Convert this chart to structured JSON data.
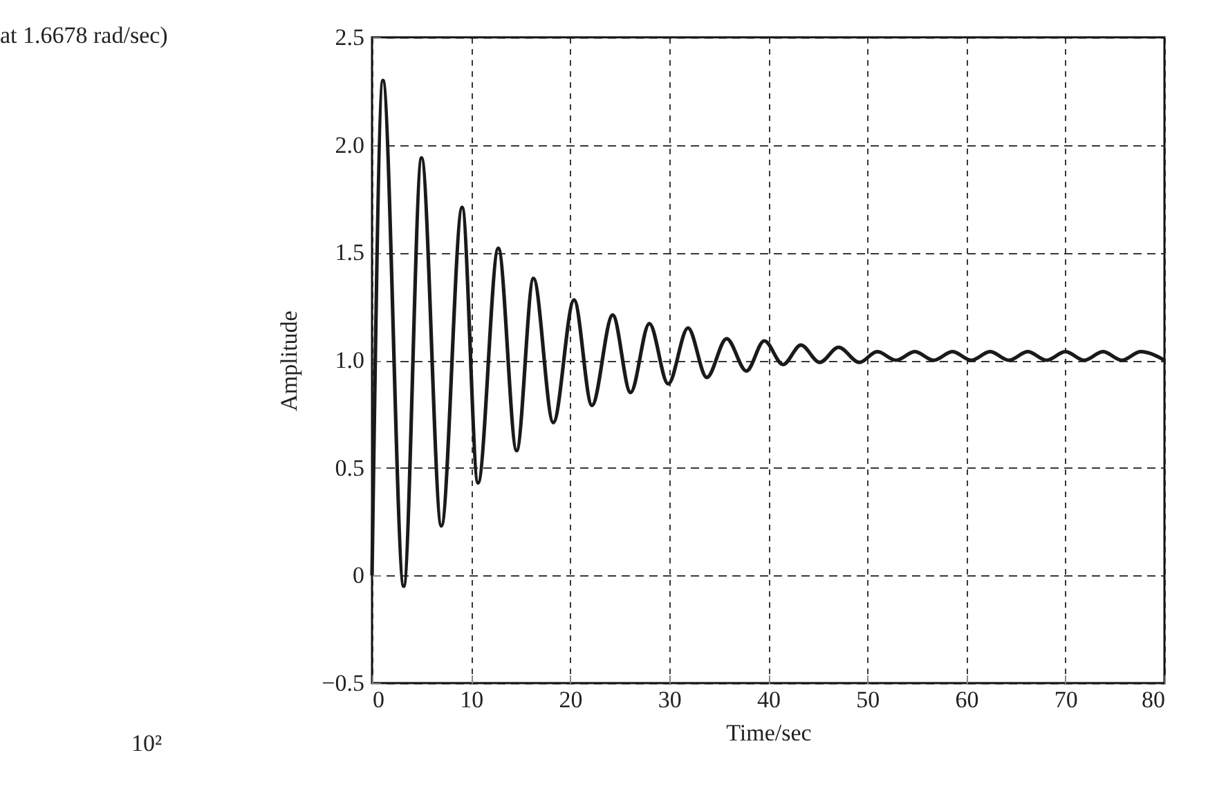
{
  "chart_data": {
    "type": "line",
    "xlabel": "Time/sec",
    "ylabel": "Amplitude",
    "annotations": [
      "at 1.6678 rad/sec)",
      "10²"
    ],
    "x": [
      0,
      1.1,
      3.2,
      5.0,
      7.0,
      9.1,
      10.7,
      12.75,
      14.6,
      16.3,
      18.3,
      20.4,
      22.2,
      24.3,
      26.1,
      28.0,
      29.9,
      31.9,
      33.8,
      35.8,
      37.8,
      39.6,
      41.5,
      43.3,
      45.2,
      47.1,
      49.2,
      51.0,
      52.9,
      54.8,
      56.7,
      58.6,
      60.5,
      62.4,
      64.3,
      66.2,
      68.1,
      70.0,
      71.9,
      73.8,
      75.7,
      77.6,
      80
    ],
    "series": [
      {
        "color": "#1a1a1a",
        "values": [
          0,
          2.3,
          -0.05,
          1.94,
          0.23,
          1.71,
          0.43,
          1.52,
          0.58,
          1.38,
          0.71,
          1.28,
          0.79,
          1.21,
          0.85,
          1.17,
          0.89,
          1.15,
          0.92,
          1.1,
          0.95,
          1.09,
          0.98,
          1.07,
          0.99,
          1.06,
          0.99,
          1.04,
          1.0,
          1.04,
          1.0,
          1.04,
          1.0,
          1.04,
          1.0,
          1.04,
          1.0,
          1.04,
          1.0,
          1.04,
          1.0,
          1.04,
          1.0
        ]
      }
    ],
    "xlim": [
      0,
      80
    ],
    "xticks": [
      0,
      10,
      20,
      30,
      40,
      50,
      60,
      70,
      80
    ],
    "ylim": [
      -0.5,
      2.5
    ],
    "yticks": [
      {
        "value": -0.5,
        "label": "−0.5"
      },
      0,
      0.5,
      {
        "value": 1,
        "label": "1.0"
      },
      1.5,
      {
        "value": 2,
        "label": "2.0"
      },
      2.5
    ],
    "grid": true,
    "line_style": "solid",
    "marker": "none"
  }
}
